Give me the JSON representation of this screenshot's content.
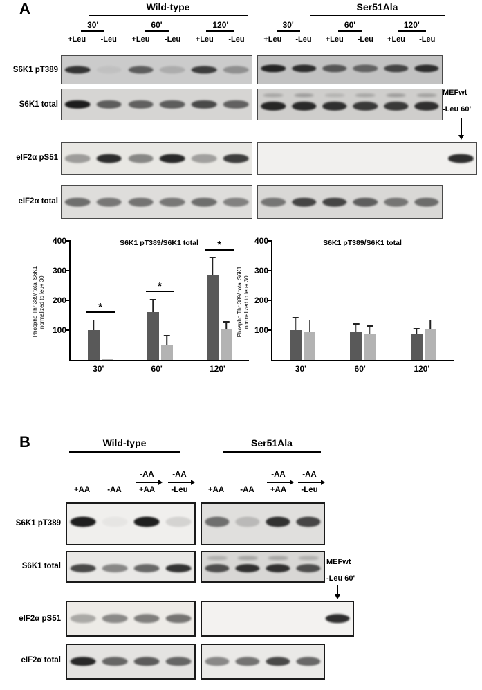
{
  "panelA": {
    "label": "A",
    "wildtype": {
      "title": "Wild-type",
      "timepoints": [
        "30'",
        "60'",
        "120'"
      ],
      "lanes": [
        "+Leu",
        "-Leu",
        "+Leu",
        "-Leu",
        "+Leu",
        "-Leu"
      ]
    },
    "ser51ala": {
      "title": "Ser51Ala",
      "timepoints": [
        "30'",
        "60'",
        "120'"
      ],
      "lanes": [
        "+Leu",
        "-Leu",
        "+Leu",
        "-Leu",
        "+Leu",
        "-Leu"
      ]
    },
    "row_labels": [
      "S6K1 pT389",
      "S6K1 total",
      "eIF2α pS51",
      "eIF2α total"
    ],
    "annotation": {
      "line1": "MEFwt",
      "line2": "-Leu 60'"
    },
    "blots": {
      "r1_left": {
        "bg": "#cbcbcb",
        "y": 50,
        "bands": [
          0.82,
          0.05,
          0.6,
          0.16,
          0.78,
          0.32
        ]
      },
      "r1_right": {
        "bg": "#c2c2c2",
        "y": 45,
        "bands": [
          0.9,
          0.85,
          0.62,
          0.55,
          0.72,
          0.85
        ]
      },
      "r2_left": {
        "bg": "#d6d5d3",
        "y": 50,
        "bands": [
          0.95,
          0.62,
          0.6,
          0.62,
          0.72,
          0.6
        ]
      },
      "r2_right": {
        "bg": "#cfcecc",
        "y": 55,
        "bands": [
          0.9,
          0.88,
          0.85,
          0.8,
          0.8,
          0.85
        ],
        "upper": [
          0.22,
          0.28,
          0.15,
          0.22,
          0.28,
          0.25
        ]
      },
      "r3_left": {
        "bg": "#e8e7e3",
        "y": 50,
        "bands": [
          0.35,
          0.88,
          0.45,
          0.9,
          0.33,
          0.8
        ]
      },
      "r3_right": {
        "bg": "#f1f0ee",
        "y": 50,
        "bands": [
          0,
          0,
          0,
          0,
          0,
          0,
          0.88
        ]
      },
      "r4_left": {
        "bg": "#dedddb",
        "y": 50,
        "bands": [
          0.55,
          0.5,
          0.52,
          0.5,
          0.55,
          0.45
        ]
      },
      "r4_right": {
        "bg": "#d9d8d6",
        "y": 50,
        "bands": [
          0.5,
          0.75,
          0.75,
          0.62,
          0.5,
          0.55
        ]
      }
    }
  },
  "panelB": {
    "label": "B",
    "wildtype": {
      "title": "Wild-type",
      "lanes": [
        {
          "main": "+AA"
        },
        {
          "main": "-AA"
        },
        {
          "pre": "-AA",
          "main": "+AA"
        },
        {
          "pre": "-AA",
          "main": "-Leu"
        }
      ]
    },
    "ser51ala": {
      "title": "Ser51Ala",
      "lanes": [
        {
          "main": "+AA"
        },
        {
          "main": "-AA"
        },
        {
          "pre": "-AA",
          "main": "+AA"
        },
        {
          "pre": "-AA",
          "main": "-Leu"
        }
      ]
    },
    "row_labels": [
      "S6K1 pT389",
      "S6K1 total",
      "eIF2α pS51",
      "eIF2α total"
    ],
    "annotation": {
      "line1": "MEFwt",
      "line2": "-Leu 60'"
    },
    "blots": {
      "r1_left": {
        "bg": "#f0efed",
        "y": 45,
        "bands": [
          0.95,
          0.04,
          0.95,
          0.12
        ]
      },
      "r1_right": {
        "bg": "#e0dfdd",
        "y": 45,
        "bands": [
          0.55,
          0.18,
          0.85,
          0.75
        ]
      },
      "r2_left": {
        "bg": "#e9e8e6",
        "y": 55,
        "bands": [
          0.75,
          0.45,
          0.6,
          0.85
        ]
      },
      "r2_right": {
        "bg": "#d8d7d5",
        "y": 55,
        "bands": [
          0.7,
          0.85,
          0.85,
          0.7
        ],
        "upper": [
          0.2,
          0.25,
          0.25,
          0.2
        ]
      },
      "r3_left": {
        "bg": "#edebe7",
        "y": 50,
        "bands": [
          0.3,
          0.45,
          0.5,
          0.55
        ]
      },
      "r3_right": {
        "bg": "#f3f2f0",
        "y": 50,
        "bands": [
          0,
          0,
          0,
          0,
          0.88
        ]
      },
      "r4_left": {
        "bg": "#e4e3e1",
        "y": 50,
        "bands": [
          0.9,
          0.6,
          0.65,
          0.6
        ]
      },
      "r4_right": {
        "bg": "#eae9e7",
        "y": 50,
        "bands": [
          0.45,
          0.55,
          0.75,
          0.6
        ]
      }
    }
  },
  "chart_data": [
    {
      "type": "bar",
      "title": "S6K1 pT389/S6K1 total",
      "ylabel": "Phospho Thr 389/ total S6K1\nnormalized to leu+ 30'",
      "xlabel": "",
      "ylim": [
        0,
        400
      ],
      "yticks": [
        100,
        200,
        300,
        400
      ],
      "categories": [
        "30'",
        "60'",
        "120'"
      ],
      "series": [
        {
          "name": "+Leu",
          "values": [
            100,
            160,
            285
          ],
          "errors": [
            35,
            45,
            60
          ]
        },
        {
          "name": "-Leu",
          "values": [
            3,
            48,
            105
          ],
          "errors": [
            0,
            35,
            25
          ]
        }
      ],
      "sig": [
        "*",
        "*",
        "*"
      ],
      "colors": [
        "#595959",
        "#b3b3b3"
      ],
      "grid": false,
      "legend": "none"
    },
    {
      "type": "bar",
      "title": "S6K1 pT389/S6K1 total",
      "ylabel": "Phospho Thr 389/ total S6K1\nnormalized to leu+ 30'",
      "xlabel": "",
      "ylim": [
        0,
        400
      ],
      "yticks": [
        100,
        200,
        300,
        400
      ],
      "categories": [
        "30'",
        "60'",
        "120'"
      ],
      "series": [
        {
          "name": "+Leu",
          "values": [
            100,
            95,
            85
          ],
          "errors": [
            45,
            28,
            22
          ]
        },
        {
          "name": "-Leu",
          "values": [
            95,
            88,
            103
          ],
          "errors": [
            40,
            28,
            32
          ]
        }
      ],
      "sig": null,
      "colors": [
        "#595959",
        "#b3b3b3"
      ],
      "grid": false,
      "legend": "none"
    }
  ]
}
